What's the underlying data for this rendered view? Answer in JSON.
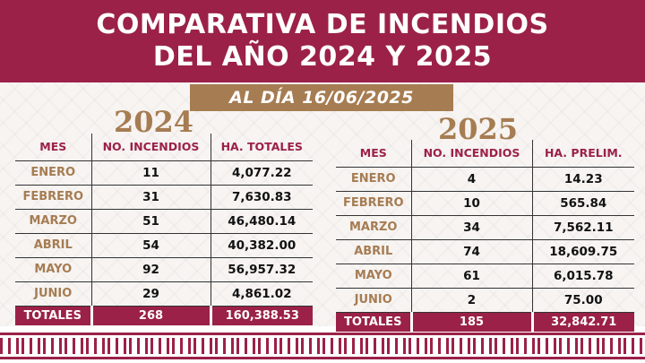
{
  "title": {
    "line1": "COMPARATIVA DE INCENDIOS",
    "line2": "DEL AÑO 2024 Y 2025"
  },
  "date_banner": "AL DÍA 16/06/2025",
  "colors": {
    "primary": "#9b2148",
    "gold": "#a67c52"
  },
  "table_2024": {
    "year": "2024",
    "headers": [
      "MES",
      "NO. INCENDIOS",
      "HA. TOTALES"
    ],
    "rows": [
      [
        "ENERO",
        "11",
        "4,077.22"
      ],
      [
        "FEBRERO",
        "31",
        "7,630.83"
      ],
      [
        "MARZO",
        "51",
        "46,480.14"
      ],
      [
        "ABRIL",
        "54",
        "40,382.00"
      ],
      [
        "MAYO",
        "92",
        "56,957.32"
      ],
      [
        "JUNIO",
        "29",
        "4,861.02"
      ]
    ],
    "totals": [
      "TOTALES",
      "268",
      "160,388.53"
    ]
  },
  "table_2025": {
    "year": "2025",
    "headers": [
      "MES",
      "NO. INCENDIOS",
      "HA. PRELIM."
    ],
    "rows": [
      [
        "ENERO",
        "4",
        "14.23"
      ],
      [
        "FEBRERO",
        "10",
        "565.84"
      ],
      [
        "MARZO",
        "34",
        "7,562.11"
      ],
      [
        "ABRIL",
        "74",
        "18,609.75"
      ],
      [
        "MAYO",
        "61",
        "6,015.78"
      ],
      [
        "JUNIO",
        "2",
        "75.00"
      ]
    ],
    "totals": [
      "TOTALES",
      "185",
      "32,842.71"
    ]
  }
}
